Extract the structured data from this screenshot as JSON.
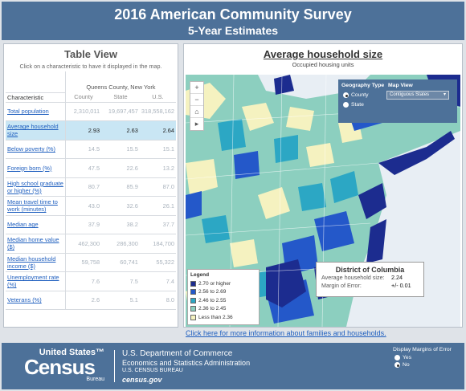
{
  "header": {
    "title": "2016 American Community Survey",
    "subtitle": "5-Year Estimates"
  },
  "table": {
    "title": "Table View",
    "instruction": "Click on a characteristic to have it displayed in the map.",
    "county_name": "Queens County, New York",
    "columns": [
      "Characteristic",
      "County",
      "State",
      "U.S."
    ],
    "rows": [
      {
        "label": "Total population",
        "county": "2,310,011",
        "state": "19,697,457",
        "us": "318,558,162"
      },
      {
        "label": "Average household size",
        "county": "2.93",
        "state": "2.63",
        "us": "2.64"
      },
      {
        "label": "Below poverty (%)",
        "county": "14.5",
        "state": "15.5",
        "us": "15.1"
      },
      {
        "label": "Foreign born (%)",
        "county": "47.5",
        "state": "22.6",
        "us": "13.2"
      },
      {
        "label": "High school graduate or higher (%)",
        "county": "80.7",
        "state": "85.9",
        "us": "87.0"
      },
      {
        "label": "Mean travel time to work (minutes)",
        "county": "43.0",
        "state": "32.6",
        "us": "26.1"
      },
      {
        "label": "Median age",
        "county": "37.9",
        "state": "38.2",
        "us": "37.7"
      },
      {
        "label": "Median home value ($)",
        "county": "462,300",
        "state": "286,300",
        "us": "184,700"
      },
      {
        "label": "Median household income ($)",
        "county": "59,758",
        "state": "60,741",
        "us": "55,322"
      },
      {
        "label": "Unemployment rate (%)",
        "county": "7.6",
        "state": "7.5",
        "us": "7.4"
      },
      {
        "label": "Veterans (%)",
        "county": "2.6",
        "state": "5.1",
        "us": "8.0"
      }
    ],
    "selected_index": 1
  },
  "map": {
    "title": "Average household size",
    "subtitle": "Occupied housing units",
    "controls": [
      "+",
      "−",
      "⌂",
      "▸"
    ],
    "geography": {
      "label": "Geography Type",
      "options": [
        "County",
        "State"
      ],
      "selected": "County"
    },
    "map_view": {
      "label": "Map View",
      "value": "Contiguous States"
    },
    "legend": {
      "title": "Legend",
      "items": [
        {
          "label": "2.70 or higher",
          "color": "#1c2c8f"
        },
        {
          "label": "2.56 to 2.69",
          "color": "#2458c9"
        },
        {
          "label": "2.46 to 2.55",
          "color": "#2ca7c4"
        },
        {
          "label": "2.36 to 2.45",
          "color": "#8ccfbf"
        },
        {
          "label": "Less than 2.36",
          "color": "#f5f2c0"
        }
      ]
    },
    "tooltip": {
      "title": "District of Columbia",
      "rows": [
        {
          "label": "Average household size:",
          "value": "2.24"
        },
        {
          "label": "Margin of Error:",
          "value": "+/- 0.01"
        }
      ]
    }
  },
  "link_text": "Click here for more information about families and households.",
  "footer": {
    "logo": {
      "top": "United States™",
      "main": "Census",
      "bottom": "Bureau"
    },
    "agency": [
      "U.S. Department of Commerce",
      "Economics and Statistics Administration",
      "U.S. CENSUS BUREAU",
      "census.gov"
    ],
    "moe": {
      "label": "Display Margins of Error",
      "options": [
        "Yes",
        "No"
      ],
      "selected": "No"
    }
  }
}
